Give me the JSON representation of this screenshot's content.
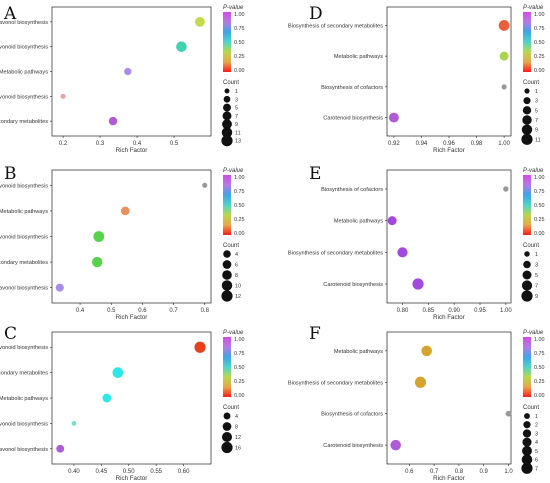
{
  "legend_titles": {
    "pvalue": "P-value",
    "count": "Count"
  },
  "colorbar_ticks": [
    "1.00",
    "0.75",
    "0.50",
    "0.25",
    "0.00"
  ],
  "colorbar_stops": [
    "#ff1a1a",
    "#e8a64a",
    "#b8d84d",
    "#4dd6c8",
    "#3fa5e8",
    "#b57be6",
    "#d24be6"
  ],
  "chart_data": [
    {
      "id": "A",
      "type": "scatter",
      "xlabel": "Rich Factor",
      "xlim": [
        0.17,
        0.6
      ],
      "xticks": [
        "0.2",
        "0.3",
        "0.4",
        "0.5"
      ],
      "categories": [
        "Biosynthesis of secondary metabolites",
        "Isoflavonoid biosynthesis",
        "Metabolic pathways",
        "Flavonoid biosynthesis",
        "Flavone and flavonol biosynthesis"
      ],
      "points": [
        {
          "pathway": "Flavone and flavonol biosynthesis",
          "rich_factor": 0.57,
          "count": 9,
          "color": "#c6d94a"
        },
        {
          "pathway": "Flavonoid biosynthesis",
          "rich_factor": 0.52,
          "count": 11,
          "color": "#3fd3b0"
        },
        {
          "pathway": "Metabolic pathways",
          "rich_factor": 0.375,
          "count": 4,
          "color": "#a98ce6"
        },
        {
          "pathway": "Isoflavonoid biosynthesis",
          "rich_factor": 0.2,
          "count": 1,
          "color": "#e8a0a0"
        },
        {
          "pathway": "Biosynthesis of secondary metabolites",
          "rich_factor": 0.335,
          "count": 6,
          "color": "#b05ad8"
        }
      ],
      "size_legend": {
        "counts": [
          1,
          3,
          5,
          7,
          9,
          11,
          13
        ]
      }
    },
    {
      "id": "B",
      "type": "scatter",
      "xlabel": "Rich Factor",
      "xlim": [
        0.31,
        0.82
      ],
      "xticks": [
        "0.4",
        "0.5",
        "0.6",
        "0.7",
        "0.8"
      ],
      "categories": [
        "Flavone and flavonol biosynthesis",
        "Biosynthesis of secondary metabolites",
        "Flavonoid biosynthesis",
        "Metabolic pathways",
        "Isoflavonoid biosynthesis"
      ],
      "points": [
        {
          "pathway": "Isoflavonoid biosynthesis",
          "rich_factor": 0.8,
          "count": 1,
          "color": "#999999"
        },
        {
          "pathway": "Metabolic pathways",
          "rich_factor": 0.545,
          "count": 6,
          "color": "#e8915a"
        },
        {
          "pathway": "Flavonoid biosynthesis",
          "rich_factor": 0.46,
          "count": 11,
          "color": "#58d24a"
        },
        {
          "pathway": "Biosynthesis of secondary metabolites",
          "rich_factor": 0.455,
          "count": 10,
          "color": "#58d24a"
        },
        {
          "pathway": "Flavone and flavonol biosynthesis",
          "rich_factor": 0.335,
          "count": 5,
          "color": "#a98ce6"
        }
      ],
      "size_legend": {
        "counts": [
          4,
          6,
          8,
          10,
          12
        ]
      }
    },
    {
      "id": "C",
      "type": "scatter",
      "xlabel": "Rich Factor",
      "xlim": [
        0.36,
        0.65
      ],
      "xticks": [
        "0.40",
        "0.45",
        "0.50",
        "0.55",
        "0.60"
      ],
      "categories": [
        "Flavone and flavonol biosynthesis",
        "Isoflavonoid biosynthesis",
        "Metabolic pathways",
        "Biosynthesis of secondary metabolites",
        "Flavonoid biosynthesis"
      ],
      "points": [
        {
          "pathway": "Flavonoid biosynthesis",
          "rich_factor": 0.63,
          "count": 16,
          "color": "#e8401a"
        },
        {
          "pathway": "Biosynthesis of secondary metabolites",
          "rich_factor": 0.48,
          "count": 14,
          "color": "#2ee8e8"
        },
        {
          "pathway": "Metabolic pathways",
          "rich_factor": 0.46,
          "count": 8,
          "color": "#2ee8e8"
        },
        {
          "pathway": "Isoflavonoid biosynthesis",
          "rich_factor": 0.4,
          "count": 1,
          "color": "#7adcd0"
        },
        {
          "pathway": "Flavone and flavonol biosynthesis",
          "rich_factor": 0.375,
          "count": 6,
          "color": "#b05ad8"
        }
      ],
      "size_legend": {
        "counts": [
          4,
          8,
          12,
          16
        ]
      }
    },
    {
      "id": "D",
      "type": "scatter",
      "xlabel": "Rich Factor",
      "xlim": [
        0.915,
        1.005
      ],
      "xticks": [
        "0.92",
        "0.94",
        "0.96",
        "0.98",
        "1.00"
      ],
      "categories": [
        "Carotenoid biosynthesis",
        "Biosynthesis of cofactors",
        "Metabolic pathways",
        "Biosynthesis of secondary metabolites"
      ],
      "points": [
        {
          "pathway": "Biosynthesis of secondary metabolites",
          "rich_factor": 1.0,
          "count": 10,
          "color": "#e8603a"
        },
        {
          "pathway": "Metabolic pathways",
          "rich_factor": 1.0,
          "count": 6,
          "color": "#a8d64a"
        },
        {
          "pathway": "Biosynthesis of cofactors",
          "rich_factor": 1.0,
          "count": 1,
          "color": "#999999"
        },
        {
          "pathway": "Carotenoid biosynthesis",
          "rich_factor": 0.92,
          "count": 8,
          "color": "#b05ad8"
        }
      ],
      "size_legend": {
        "counts": [
          1,
          3,
          5,
          7,
          9,
          11
        ]
      }
    },
    {
      "id": "E",
      "type": "scatter",
      "xlabel": "Rich Factor",
      "xlim": [
        0.77,
        1.01
      ],
      "xticks": [
        "0.80",
        "0.85",
        "0.90",
        "0.95",
        "1.00"
      ],
      "categories": [
        "Carotenoid biosynthesis",
        "Biosynthesis of secondary metabolites",
        "Metabolic pathways",
        "Biosynthesis of cofactors"
      ],
      "points": [
        {
          "pathway": "Biosynthesis of cofactors",
          "rich_factor": 1.0,
          "count": 1,
          "color": "#999999"
        },
        {
          "pathway": "Metabolic pathways",
          "rich_factor": 0.78,
          "count": 5,
          "color": "#a24ae0"
        },
        {
          "pathway": "Biosynthesis of secondary metabolites",
          "rich_factor": 0.8,
          "count": 7,
          "color": "#a24ae0"
        },
        {
          "pathway": "Carotenoid biosynthesis",
          "rich_factor": 0.83,
          "count": 9,
          "color": "#a24ae0"
        }
      ],
      "size_legend": {
        "counts": [
          1,
          3,
          5,
          7,
          9
        ]
      }
    },
    {
      "id": "F",
      "type": "scatter",
      "xlabel": "Rich Factor",
      "xlim": [
        0.51,
        1.01
      ],
      "xticks": [
        "0.6",
        "0.7",
        "0.8",
        "0.9",
        "1.0"
      ],
      "categories": [
        "Carotenoid biosynthesis",
        "Biosynthesis of cofactors",
        "Biosynthesis of secondary metabolites",
        "Metabolic pathways"
      ],
      "points": [
        {
          "pathway": "Metabolic pathways",
          "rich_factor": 0.67,
          "count": 6,
          "color": "#d4a42e"
        },
        {
          "pathway": "Biosynthesis of secondary metabolites",
          "rich_factor": 0.645,
          "count": 7,
          "color": "#d4a42e"
        },
        {
          "pathway": "Biosynthesis of cofactors",
          "rich_factor": 1.0,
          "count": 1,
          "color": "#999999"
        },
        {
          "pathway": "Carotenoid biosynthesis",
          "rich_factor": 0.545,
          "count": 6,
          "color": "#b05ad8"
        }
      ],
      "size_legend": {
        "counts": [
          1,
          2,
          3,
          4,
          5,
          6,
          7
        ]
      }
    }
  ]
}
